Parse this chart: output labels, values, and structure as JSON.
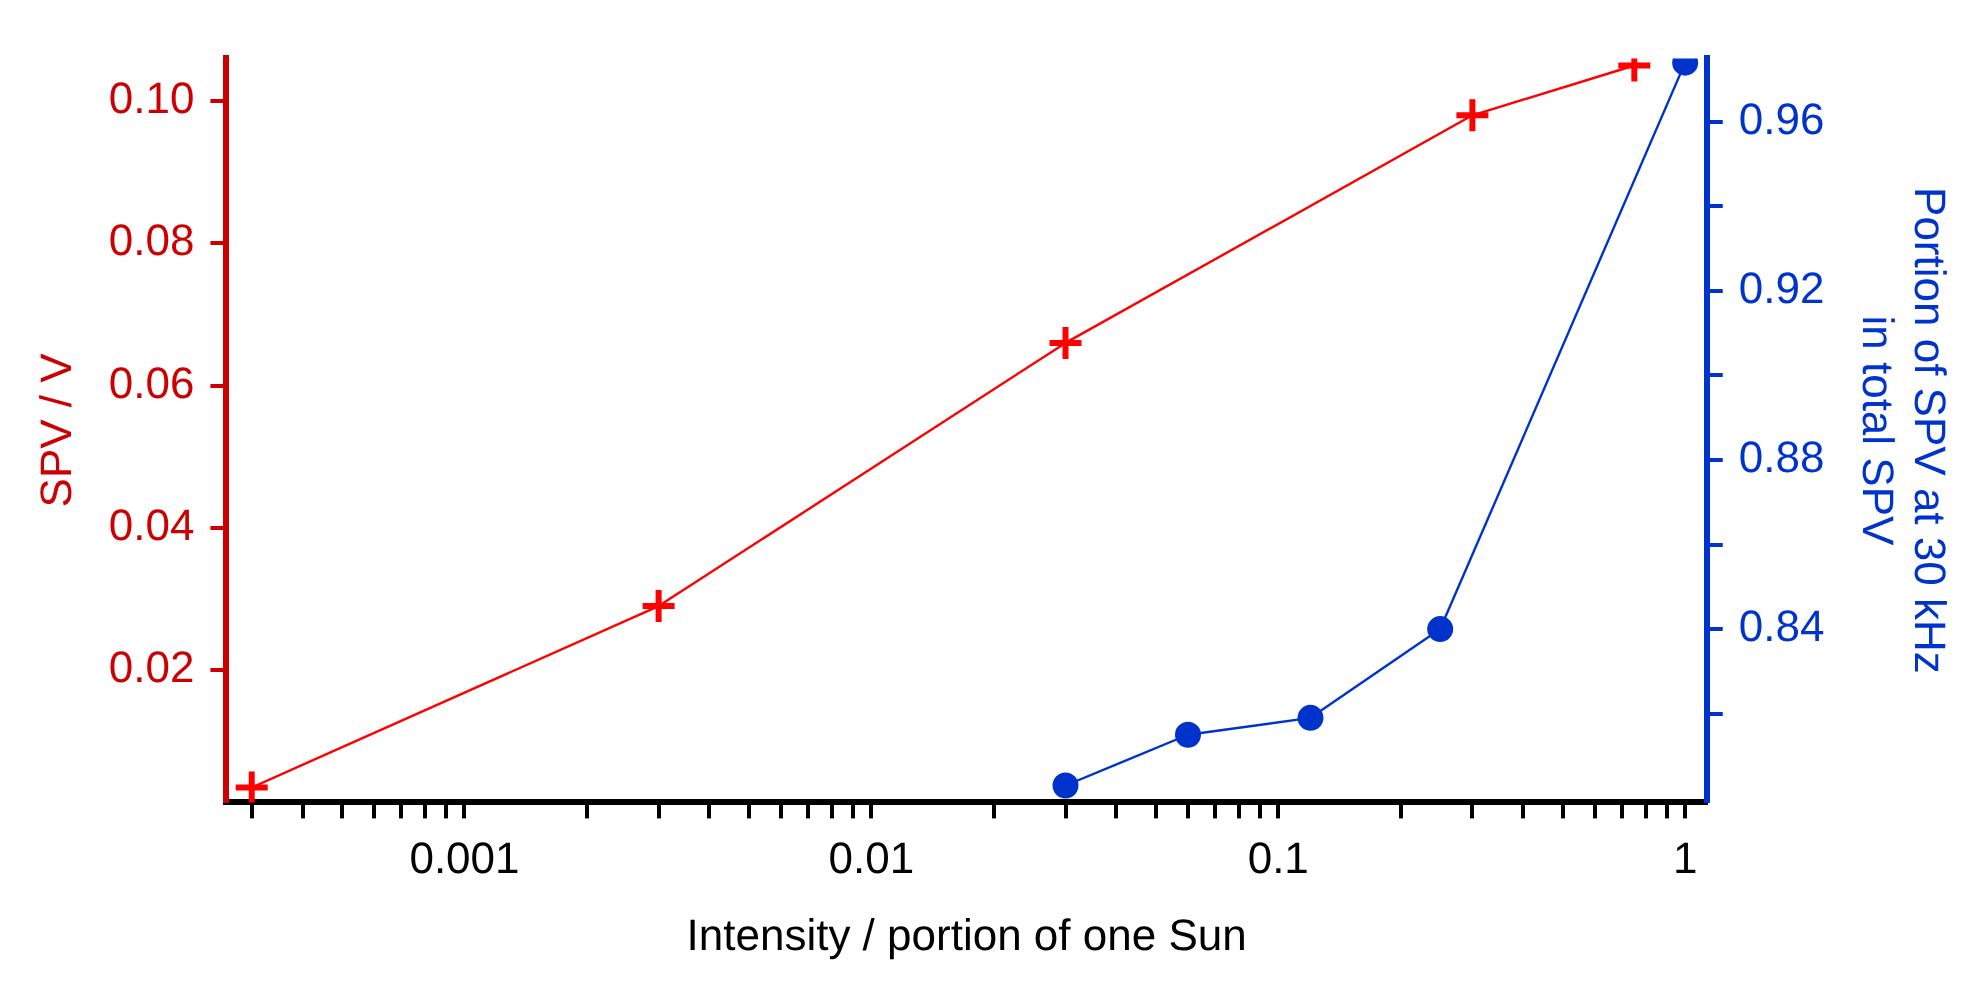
{
  "chart_data": {
    "type": "line",
    "xlabel": "Intensity / portion of one Sun",
    "ylabel": "SPV / V",
    "y2label": "Portion of SPV at 30 kHz\nin total SPV",
    "log": "x",
    "grid": false,
    "legend": false,
    "xlim": [
      0.00026,
      1.13
    ],
    "xticks": [
      {
        "value": 0.0003,
        "label": null
      },
      {
        "value": 0.0004,
        "label": null
      },
      {
        "value": 0.0005,
        "label": null
      },
      {
        "value": 0.0006,
        "label": null
      },
      {
        "value": 0.0007,
        "label": null
      },
      {
        "value": 0.0008,
        "label": null
      },
      {
        "value": 0.0009,
        "label": null
      },
      0.001,
      {
        "value": 0.002,
        "label": null
      },
      {
        "value": 0.003,
        "label": null
      },
      {
        "value": 0.004,
        "label": null
      },
      {
        "value": 0.005,
        "label": null
      },
      {
        "value": 0.006,
        "label": null
      },
      {
        "value": 0.007,
        "label": null
      },
      {
        "value": 0.008,
        "label": null
      },
      {
        "value": 0.009,
        "label": null
      },
      0.01,
      {
        "value": 0.02,
        "label": null
      },
      {
        "value": 0.03,
        "label": null
      },
      {
        "value": 0.04,
        "label": null
      },
      {
        "value": 0.05,
        "label": null
      },
      {
        "value": 0.06,
        "label": null
      },
      {
        "value": 0.07,
        "label": null
      },
      {
        "value": 0.08,
        "label": null
      },
      {
        "value": 0.09,
        "label": null
      },
      0.1,
      {
        "value": 0.2,
        "label": null
      },
      {
        "value": 0.3,
        "label": null
      },
      {
        "value": 0.4,
        "label": null
      },
      {
        "value": 0.5,
        "label": null
      },
      {
        "value": 0.6,
        "label": null
      },
      {
        "value": 0.7,
        "label": null
      },
      {
        "value": 0.8,
        "label": null
      },
      {
        "value": 0.9,
        "label": null
      },
      1
    ],
    "ylim": [
      0.0014,
      0.106
    ],
    "yticks": [
      {
        "value": 0.02,
        "label": "0.02"
      },
      {
        "value": 0.04,
        "label": "0.04"
      },
      {
        "value": 0.06,
        "label": "0.06"
      },
      {
        "value": 0.08,
        "label": "0.08"
      },
      {
        "value": 0.1,
        "label": "0.10"
      }
    ],
    "y2lim": [
      0.799,
      0.975
    ],
    "y2ticks": [
      {
        "value": 0.82,
        "label": null
      },
      {
        "value": 0.84,
        "label": "0.84"
      },
      {
        "value": 0.86,
        "label": null
      },
      {
        "value": 0.88,
        "label": "0.88"
      },
      {
        "value": 0.9,
        "label": null
      },
      {
        "value": 0.92,
        "label": "0.92"
      },
      {
        "value": 0.94,
        "label": null
      },
      {
        "value": 0.96,
        "label": "0.96"
      }
    ],
    "series": [
      {
        "color": "#ff0000",
        "marker": "cross",
        "x": [
          0.0003,
          0.003,
          0.03,
          0.3,
          0.75
        ],
        "values": [
          0.0035,
          0.029,
          0.066,
          0.098,
          0.105
        ]
      },
      {
        "color": "#0033cc",
        "marker": "circle",
        "axis": "y2",
        "x": [
          0.03,
          0.06,
          0.12,
          0.25,
          1
        ],
        "values": [
          0.803,
          0.815,
          0.819,
          0.84,
          0.974
        ]
      }
    ]
  }
}
